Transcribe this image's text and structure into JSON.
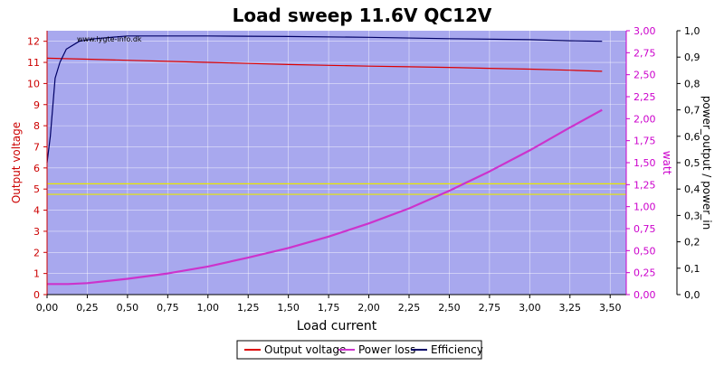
{
  "chart_data": {
    "type": "line",
    "title": "Load sweep 11.6V QC12V",
    "xlabel": "Load current",
    "watermark": "www.lygte-info.dk",
    "x_ticks": [
      "0,00",
      "0,25",
      "0,50",
      "0,75",
      "1,00",
      "1,25",
      "1,50",
      "1,75",
      "2,00",
      "2,25",
      "2,50",
      "2,75",
      "3,00",
      "3,25",
      "3,50"
    ],
    "axes": {
      "left": {
        "label": "Output voltage",
        "range": [
          0,
          12.5
        ],
        "ticks": [
          "0",
          "1",
          "2",
          "3",
          "4",
          "5",
          "6",
          "7",
          "8",
          "9",
          "10",
          "11",
          "12"
        ],
        "color": "#cc0000"
      },
      "right1": {
        "label": "watt",
        "range": [
          0,
          3.0
        ],
        "ticks": [
          "0,00",
          "0,25",
          "0,50",
          "0,75",
          "1,00",
          "1,25",
          "1,50",
          "1,75",
          "2,00",
          "2,25",
          "2,50",
          "2,75",
          "3,00"
        ],
        "color": "#cc00cc"
      },
      "right2": {
        "label": "power_output / power_in",
        "range": [
          0,
          1.0
        ],
        "ticks": [
          "0,0",
          "0,1",
          "0,2",
          "0,3",
          "0,4",
          "0,5",
          "0,6",
          "0,7",
          "0,8",
          "0,9",
          "1,0"
        ],
        "color": "#000000"
      }
    },
    "xlim": [
      0,
      3.6
    ],
    "grid": true,
    "legend_position": "bottom",
    "background": "#a8a8ee",
    "reference_lines": {
      "axis": "left",
      "values": [
        5.25,
        4.75
      ],
      "color": "#e8e800"
    },
    "series": [
      {
        "name": "Output voltage",
        "axis": "left",
        "color": "#dd0000",
        "x": [
          0.0,
          0.25,
          0.5,
          0.75,
          1.0,
          1.25,
          1.5,
          1.75,
          2.0,
          2.25,
          2.5,
          2.75,
          3.0,
          3.25,
          3.45
        ],
        "y": [
          11.2,
          11.15,
          11.1,
          11.05,
          11.0,
          10.95,
          10.9,
          10.86,
          10.82,
          10.79,
          10.76,
          10.72,
          10.68,
          10.63,
          10.58
        ]
      },
      {
        "name": "Power loss",
        "axis": "right1",
        "color": "#cc33cc",
        "x": [
          0.0,
          0.13,
          0.25,
          0.5,
          0.75,
          1.0,
          1.25,
          1.5,
          1.75,
          2.0,
          2.25,
          2.5,
          2.75,
          3.0,
          3.25,
          3.45
        ],
        "y": [
          0.12,
          0.12,
          0.13,
          0.18,
          0.24,
          0.32,
          0.42,
          0.53,
          0.66,
          0.81,
          0.98,
          1.18,
          1.4,
          1.64,
          1.9,
          2.1
        ]
      },
      {
        "name": "Efficiency",
        "axis": "right2",
        "color": "#000066",
        "x": [
          0.0,
          0.02,
          0.05,
          0.08,
          0.12,
          0.2,
          0.3,
          0.5,
          0.75,
          1.0,
          1.5,
          2.0,
          2.5,
          3.0,
          3.25,
          3.45
        ],
        "y": [
          0.5,
          0.6,
          0.82,
          0.88,
          0.93,
          0.96,
          0.97,
          0.98,
          0.98,
          0.98,
          0.978,
          0.975,
          0.97,
          0.966,
          0.962,
          0.96
        ]
      }
    ]
  }
}
